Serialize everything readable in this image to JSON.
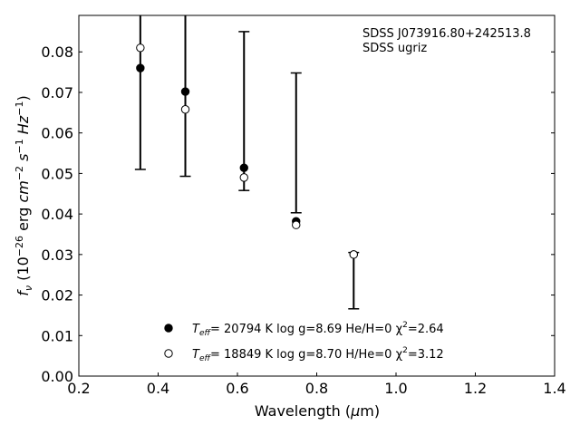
{
  "chart_data": {
    "type": "scatter",
    "title_lines": [
      "SDSS J073916.80+242513.8",
      "SDSS ugriz"
    ],
    "xlabel": "Wavelength (μm)",
    "ylabel": "fν (10⁻²⁶ erg cm⁻² s⁻¹ Hz⁻¹)",
    "xlim": [
      0.2,
      1.4
    ],
    "ylim": [
      0.0,
      0.089
    ],
    "xticks": [
      "0.2",
      "0.4",
      "0.6",
      "0.8",
      "1.0",
      "1.2",
      "1.4"
    ],
    "yticks": [
      "0.00",
      "0.01",
      "0.02",
      "0.03",
      "0.04",
      "0.05",
      "0.06",
      "0.07",
      "0.08"
    ],
    "observed": {
      "x": [
        0.3551,
        0.4686,
        0.6166,
        0.748,
        0.8932
      ],
      "y": [
        0.076,
        0.0702,
        0.0514,
        0.0382,
        0.03
      ],
      "err_low": [
        0.051,
        0.0493,
        0.0458,
        0.0403,
        0.0166
      ],
      "err_high": [
        0.089,
        0.089,
        0.085,
        0.0748,
        0.0305
      ]
    },
    "series": [
      {
        "name": "Teff= 20794 K  log g=8.69  He/H=0  χ²=2.64",
        "marker": "filled",
        "x": [
          0.3551,
          0.4686,
          0.6166,
          0.748,
          0.8932
        ],
        "y": [
          0.076,
          0.0702,
          0.0514,
          0.0382,
          0.03
        ]
      },
      {
        "name": "Teff= 18849 K  log g=8.70  H/He=0  χ²=3.12",
        "marker": "open",
        "x": [
          0.3551,
          0.4686,
          0.6166,
          0.748,
          0.8932
        ],
        "y": [
          0.081,
          0.0658,
          0.049,
          0.0373,
          0.03
        ]
      }
    ],
    "legend": {
      "position": "lower-center",
      "entries": [
        {
          "prefix": "T",
          "sub": "eff",
          "text": "= 20794 K  log g=8.69  He/H=0  χ",
          "sup": "2",
          "tail": "=2.64"
        },
        {
          "prefix": "T",
          "sub": "eff",
          "text": "= 18849 K  log g=8.70  H/He=0  χ",
          "sup": "2",
          "tail": "=3.12"
        }
      ]
    },
    "colors": {
      "marker": "#000000",
      "open_fill": "#ffffff",
      "axes": "#000000"
    }
  }
}
